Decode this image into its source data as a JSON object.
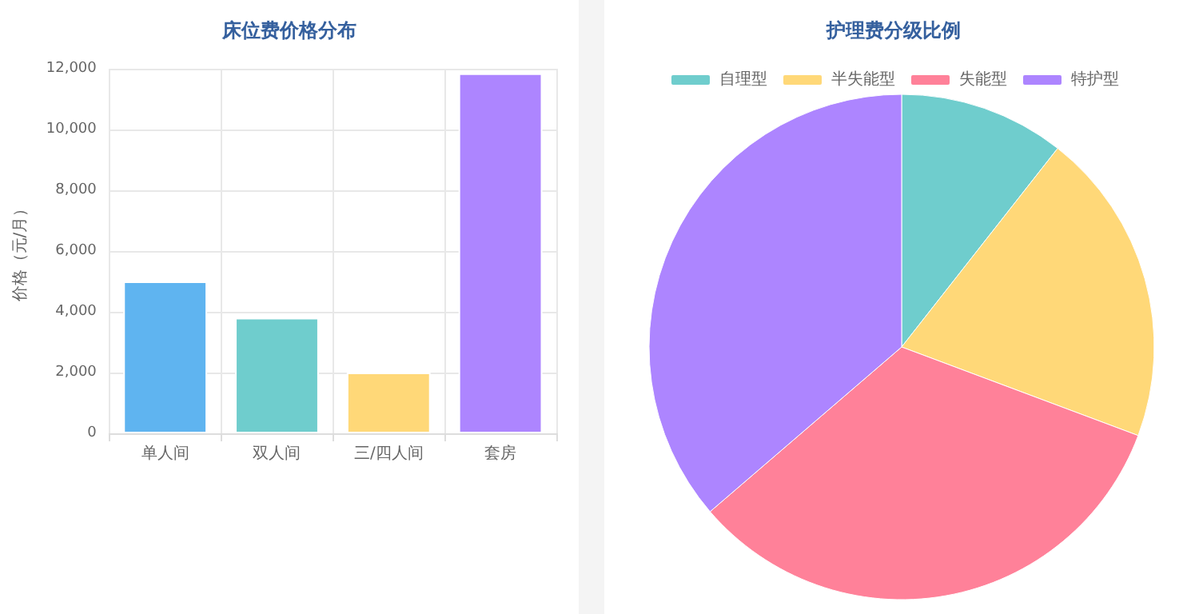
{
  "chart_data": [
    {
      "type": "bar",
      "title": "床位费价格分布",
      "ylabel": "价格（元/月）",
      "categories": [
        "单人间",
        "双人间",
        "三/四人间",
        "套房"
      ],
      "values": [
        5000,
        3800,
        2000,
        11850
      ],
      "colors": [
        "#5fb4f0",
        "#6fcdcd",
        "#ffd878",
        "#ad85ff"
      ],
      "ylim": [
        0,
        12000
      ],
      "yticks": [
        {
          "value": 0,
          "label": "0"
        },
        {
          "value": 2000,
          "label": "2,000"
        },
        {
          "value": 4000,
          "label": "4,000"
        },
        {
          "value": 6000,
          "label": "6,000"
        },
        {
          "value": 8000,
          "label": "8,000"
        },
        {
          "value": 10000,
          "label": "10,000"
        },
        {
          "value": 12000,
          "label": "12,000"
        }
      ],
      "grid": true
    },
    {
      "type": "pie",
      "title": "护理费分级比例",
      "categories": [
        "自理型",
        "半失能型",
        "失能型",
        "特护型"
      ],
      "values": [
        10.6,
        20.1,
        33.0,
        36.3
      ],
      "colors": [
        "#6fcdcd",
        "#ffd878",
        "#ff8199",
        "#ad85ff"
      ],
      "legend": "top"
    }
  ]
}
